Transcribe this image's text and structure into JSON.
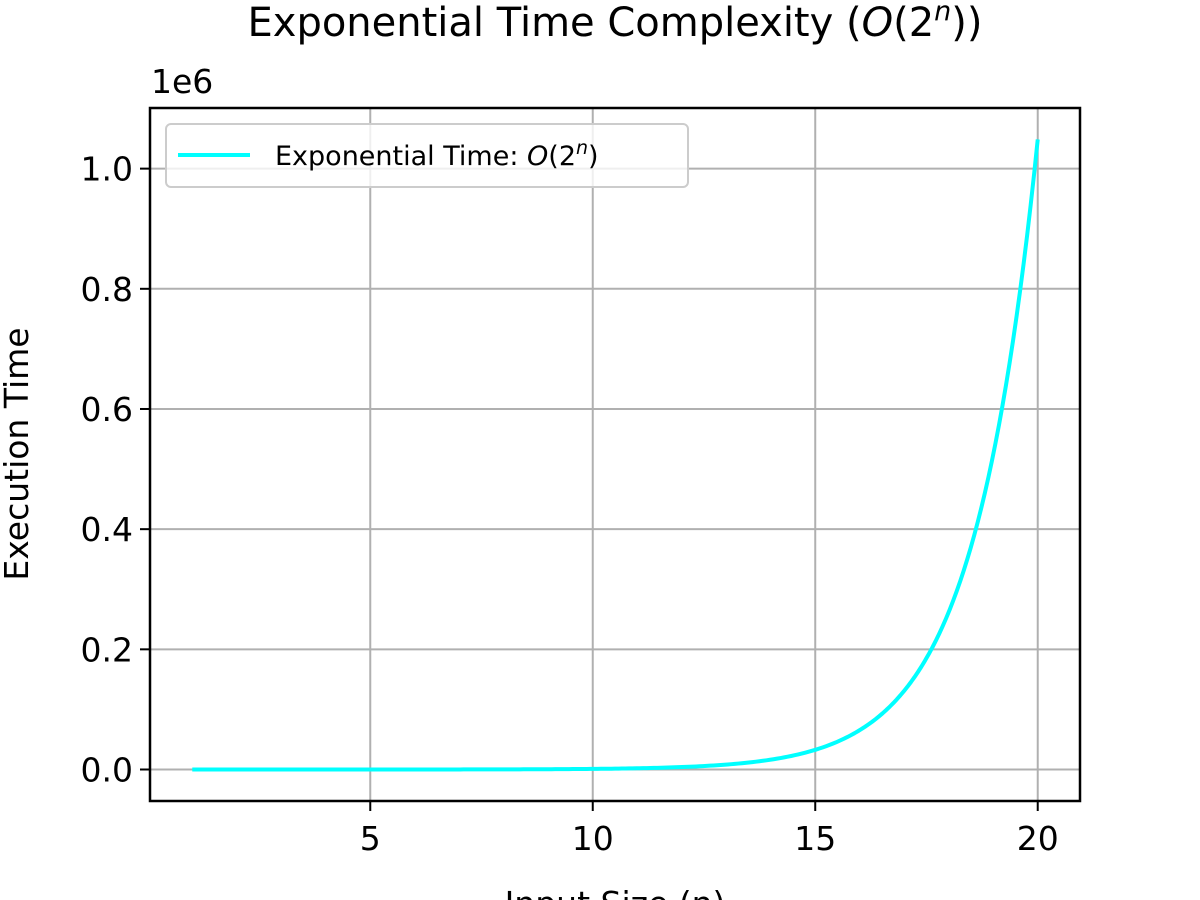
{
  "chart_data": {
    "type": "line",
    "title": "Exponential Time Complexity (O(2^n))",
    "title_parts": {
      "prefix": "Exponential Time Complexity (",
      "big_o": "O",
      "open": "(2",
      "exp": "n",
      "close": "))"
    },
    "xlabel": "Input Size (n)",
    "ylabel": "Execution Time",
    "y_offset_text": "1e6",
    "xlim": [
      0.05,
      20.95
    ],
    "ylim": [
      -0.0524,
      1.1009
    ],
    "x_ticks": [
      5,
      10,
      15,
      20
    ],
    "x_tick_labels": [
      "5",
      "10",
      "15",
      "20"
    ],
    "y_ticks": [
      0.0,
      0.2,
      0.4,
      0.6,
      0.8,
      1.0
    ],
    "y_tick_labels": [
      "0.0",
      "0.2",
      "0.4",
      "0.6",
      "0.8",
      "1.0"
    ],
    "y_scale_multiplier": 1000000,
    "grid": true,
    "legend_position": "upper-left",
    "series": [
      {
        "name": "Exponential Time: O(2^n)",
        "legend_parts": {
          "prefix": "Exponential Time: ",
          "big_o": "O",
          "open": "(2",
          "exp": "n",
          "close": ")"
        },
        "color": "#00ffff",
        "formula": "2^n",
        "x_range": [
          1,
          20
        ]
      }
    ]
  }
}
